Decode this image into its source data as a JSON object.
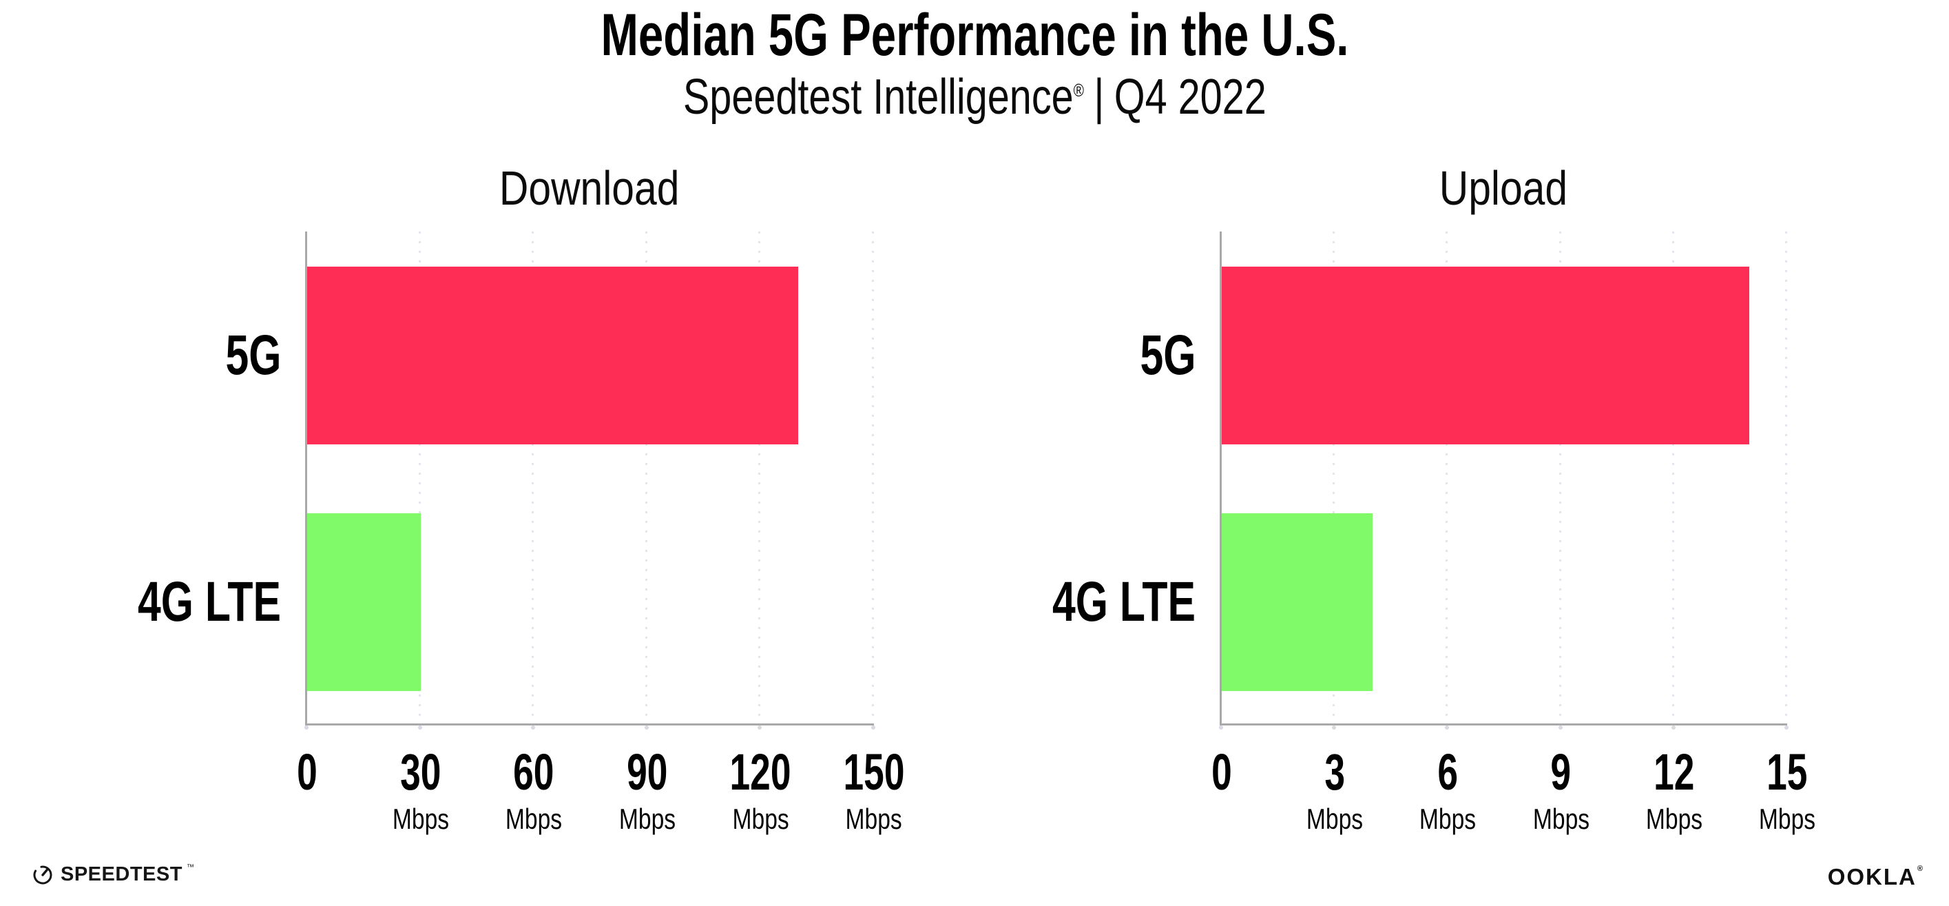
{
  "header": {
    "title": "Median 5G Performance in the U.S.",
    "subtitle_brand": "Speedtest Intelligence",
    "subtitle_reg": "®",
    "subtitle_sep": "|",
    "subtitle_period": "Q4 2022"
  },
  "charts": [
    {
      "title": "Download",
      "ticks": [
        {
          "label": "0",
          "unit": ""
        },
        {
          "label": "30",
          "unit": "Mbps"
        },
        {
          "label": "60",
          "unit": "Mbps"
        },
        {
          "label": "90",
          "unit": "Mbps"
        },
        {
          "label": "120",
          "unit": "Mbps"
        },
        {
          "label": "150",
          "unit": "Mbps"
        }
      ]
    },
    {
      "title": "Upload",
      "ticks": [
        {
          "label": "0",
          "unit": ""
        },
        {
          "label": "3",
          "unit": "Mbps"
        },
        {
          "label": "6",
          "unit": "Mbps"
        },
        {
          "label": "9",
          "unit": "Mbps"
        },
        {
          "label": "12",
          "unit": "Mbps"
        },
        {
          "label": "15",
          "unit": "Mbps"
        }
      ]
    }
  ],
  "colors": {
    "bar_5g": "#FD2D56",
    "bar_4g_lte": "#80FA68",
    "axis": "#A9A9A9",
    "gridline": "#E4E4EC",
    "tick_dot": "#D9D9E1",
    "text": "#000000"
  },
  "footer": {
    "speedtest_label": "SPEEDTEST",
    "speedtest_mark": "™",
    "ookla_label": "OOKLA",
    "ookla_mark": "®"
  },
  "chart_data": [
    {
      "type": "bar",
      "orientation": "horizontal",
      "title": "Download",
      "categories": [
        "5G",
        "4G LTE"
      ],
      "values": [
        130,
        30
      ],
      "unit": "Mbps",
      "xlim": [
        0,
        150
      ],
      "xticks": [
        0,
        30,
        60,
        90,
        120,
        150
      ],
      "series_colors": [
        "#FD2D56",
        "#80FA68"
      ],
      "grid": "vertical-dotted",
      "legend": "none"
    },
    {
      "type": "bar",
      "orientation": "horizontal",
      "title": "Upload",
      "categories": [
        "5G",
        "4G LTE"
      ],
      "values": [
        14,
        4
      ],
      "unit": "Mbps",
      "xlim": [
        0,
        15
      ],
      "xticks": [
        0,
        3,
        6,
        9,
        12,
        15
      ],
      "series_colors": [
        "#FD2D56",
        "#80FA68"
      ],
      "grid": "vertical-dotted",
      "legend": "none"
    }
  ]
}
